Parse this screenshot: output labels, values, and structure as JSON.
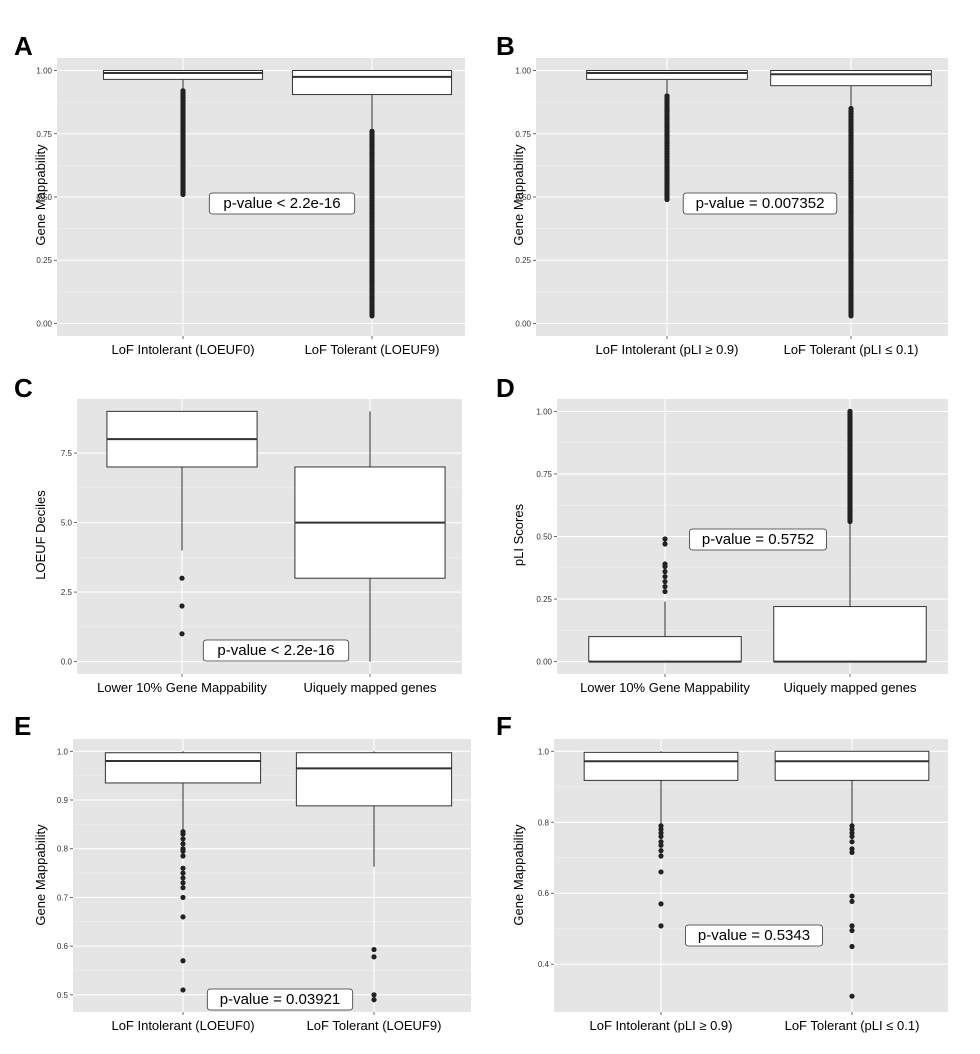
{
  "chart_data": [
    {
      "panel": "A",
      "type": "box",
      "ylabel": "Gene Mappability",
      "ylim": [
        0,
        1
      ],
      "yticks": [
        "0.00",
        "0.25",
        "0.50",
        "0.75",
        "1.00"
      ],
      "categories": [
        "LoF Intolerant (LOEUF0)",
        "LoF Tolerant (LOEUF9)"
      ],
      "boxes": [
        {
          "q1": 0.965,
          "median": 0.99,
          "q3": 1.0,
          "whisker_low": 0.93,
          "whisker_high": 1.0,
          "outlier_range": [
            0.51,
            0.92
          ]
        },
        {
          "q1": 0.905,
          "median": 0.975,
          "q3": 1.0,
          "whisker_low": 0.77,
          "whisker_high": 1.0,
          "outlier_range": [
            0.03,
            0.76
          ]
        }
      ],
      "annotation": "p-value < 2.2e-16"
    },
    {
      "panel": "B",
      "type": "box",
      "ylabel": "Gene Mappability",
      "ylim": [
        0,
        1
      ],
      "yticks": [
        "0.00",
        "0.25",
        "0.50",
        "0.75",
        "1.00"
      ],
      "categories": [
        "LoF Intolerant (pLI ≥ 0.9)",
        "LoF Tolerant (pLI ≤ 0.1)"
      ],
      "boxes": [
        {
          "q1": 0.965,
          "median": 0.99,
          "q3": 1.0,
          "whisker_low": 0.91,
          "whisker_high": 1.0,
          "outlier_range": [
            0.49,
            0.9
          ]
        },
        {
          "q1": 0.94,
          "median": 0.985,
          "q3": 1.0,
          "whisker_low": 0.86,
          "whisker_high": 1.0,
          "outlier_range": [
            0.03,
            0.85
          ]
        }
      ],
      "annotation": "p-value = 0.007352"
    },
    {
      "panel": "C",
      "type": "box",
      "ylabel": "LOEUF Deciles",
      "ylim": [
        0,
        9
      ],
      "yticks": [
        "0.0",
        "2.5",
        "5.0",
        "7.5"
      ],
      "categories": [
        "Lower 10% Gene Mappability",
        "Uiquely mapped genes"
      ],
      "boxes": [
        {
          "q1": 7,
          "median": 8,
          "q3": 9,
          "whisker_low": 4,
          "whisker_high": 9,
          "outliers": [
            1,
            2,
            3
          ]
        },
        {
          "q1": 3,
          "median": 5,
          "q3": 7,
          "whisker_low": 0,
          "whisker_high": 9,
          "outliers": []
        }
      ],
      "annotation": "p-value < 2.2e-16"
    },
    {
      "panel": "D",
      "type": "box",
      "ylabel": "pLI Scores",
      "ylim": [
        0,
        1
      ],
      "yticks": [
        "0.00",
        "0.25",
        "0.50",
        "0.75",
        "1.00"
      ],
      "categories": [
        "Lower 10% Gene Mappability",
        "Uiquely mapped genes"
      ],
      "boxes": [
        {
          "q1": 0.0,
          "median": 0.0,
          "q3": 0.1,
          "whisker_low": 0.0,
          "whisker_high": 0.24,
          "outliers": [
            0.28,
            0.3,
            0.32,
            0.34,
            0.36,
            0.38,
            0.39,
            0.47,
            0.49
          ]
        },
        {
          "q1": 0.0,
          "median": 0.0,
          "q3": 0.22,
          "whisker_low": 0.0,
          "whisker_high": 0.55,
          "outlier_range": [
            0.56,
            1.0
          ]
        }
      ],
      "annotation": "p-value = 0.5752"
    },
    {
      "panel": "E",
      "type": "box",
      "ylabel": "Gene Mappability",
      "ylim": [
        0.49,
        1.0
      ],
      "yticks": [
        "0.5",
        "0.6",
        "0.7",
        "0.8",
        "0.9",
        "1.0"
      ],
      "categories": [
        "LoF Intolerant (LOEUF0)",
        "LoF Tolerant (LOEUF9)"
      ],
      "boxes": [
        {
          "q1": 0.935,
          "median": 0.98,
          "q3": 0.997,
          "whisker_low": 0.84,
          "whisker_high": 1.0,
          "outliers": [
            0.835,
            0.83,
            0.82,
            0.81,
            0.8,
            0.795,
            0.785,
            0.76,
            0.75,
            0.74,
            0.73,
            0.72,
            0.7,
            0.66,
            0.57,
            0.51
          ]
        },
        {
          "q1": 0.888,
          "median": 0.965,
          "q3": 0.997,
          "whisker_low": 0.763,
          "whisker_high": 1.0,
          "outliers": [
            0.593,
            0.578,
            0.5,
            0.49
          ]
        }
      ],
      "annotation": "p-value = 0.03921"
    },
    {
      "panel": "F",
      "type": "box",
      "ylabel": "Gene Mappability",
      "ylim": [
        0.3,
        1.0
      ],
      "yticks": [
        "0.4",
        "0.6",
        "0.8",
        "1.0"
      ],
      "categories": [
        "LoF Intolerant (pLI ≥ 0.9)",
        "LoF Tolerant (pLI ≤ 0.1)"
      ],
      "boxes": [
        {
          "q1": 0.918,
          "median": 0.972,
          "q3": 0.997,
          "whisker_low": 0.795,
          "whisker_high": 1.0,
          "outliers": [
            0.79,
            0.78,
            0.77,
            0.76,
            0.745,
            0.735,
            0.72,
            0.705,
            0.66,
            0.57,
            0.508
          ]
        },
        {
          "q1": 0.918,
          "median": 0.972,
          "q3": 1.0,
          "whisker_low": 0.795,
          "whisker_high": 1.0,
          "outliers": [
            0.79,
            0.78,
            0.77,
            0.76,
            0.745,
            0.725,
            0.715,
            0.592,
            0.577,
            0.508,
            0.495,
            0.45,
            0.31
          ]
        }
      ],
      "annotation": "p-value = 0.5343"
    }
  ]
}
